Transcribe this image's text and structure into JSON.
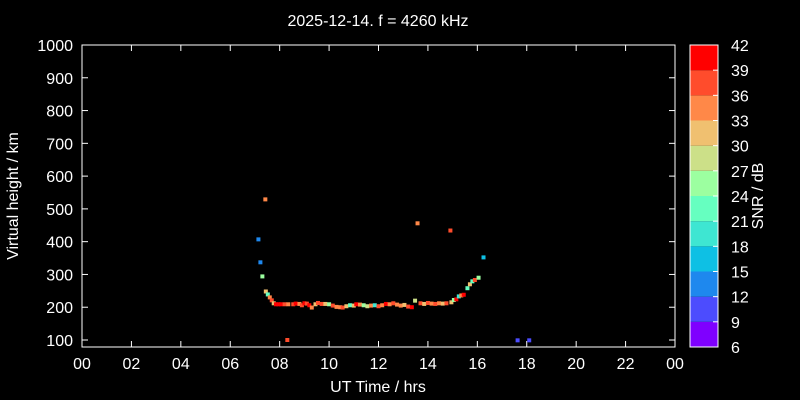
{
  "chart_data": {
    "type": "scatter",
    "title": "2025-12-14. f = 4260 kHz",
    "xlabel": "UT Time / hrs",
    "ylabel": "Virtual height / km",
    "xlim": [
      0,
      24
    ],
    "ylim": [
      80,
      1000
    ],
    "xticks": [
      "00",
      "02",
      "04",
      "06",
      "08",
      "10",
      "12",
      "14",
      "16",
      "18",
      "20",
      "22",
      "00"
    ],
    "xtick_values": [
      0,
      2,
      4,
      6,
      8,
      10,
      12,
      14,
      16,
      18,
      20,
      22,
      24
    ],
    "yticks": [
      100,
      200,
      300,
      400,
      500,
      600,
      700,
      800,
      900,
      1000
    ],
    "colorbar": {
      "label": "SNR / dB",
      "ticks": [
        6,
        9,
        12,
        15,
        18,
        21,
        24,
        27,
        30,
        33,
        36,
        39,
        42
      ],
      "colors": [
        "#7f00ff",
        "#4c4cfe",
        "#1e88ee",
        "#0ec0e4",
        "#3ee6d2",
        "#66ffc0",
        "#9cffa0",
        "#cce088",
        "#f0c070",
        "#ff8848",
        "#ff4c2c",
        "#ff0000"
      ]
    },
    "points": [
      [
        7.14,
        407,
        13
      ],
      [
        7.22,
        337,
        13
      ],
      [
        7.3,
        294,
        25
      ],
      [
        7.42,
        529,
        34
      ],
      [
        8.31,
        100,
        37
      ],
      [
        7.44,
        248,
        31
      ],
      [
        7.52,
        239,
        22
      ],
      [
        7.6,
        230,
        34
      ],
      [
        7.68,
        221,
        37
      ],
      [
        7.76,
        212,
        31
      ],
      [
        7.85,
        209,
        40
      ],
      [
        7.95,
        209,
        40
      ],
      [
        8.05,
        209,
        40
      ],
      [
        8.2,
        209,
        37
      ],
      [
        8.35,
        209,
        34
      ],
      [
        8.55,
        209,
        37
      ],
      [
        8.65,
        211,
        40
      ],
      [
        8.8,
        210,
        33
      ],
      [
        8.9,
        206,
        37
      ],
      [
        9.0,
        212,
        40
      ],
      [
        9.1,
        211,
        37
      ],
      [
        9.2,
        206,
        40
      ],
      [
        9.3,
        199,
        33
      ],
      [
        9.45,
        209,
        30
      ],
      [
        9.55,
        213,
        37
      ],
      [
        9.7,
        210,
        37
      ],
      [
        9.85,
        210,
        31
      ],
      [
        10.0,
        209,
        25
      ],
      [
        10.15,
        205,
        36
      ],
      [
        10.3,
        201,
        33
      ],
      [
        10.45,
        200,
        35
      ],
      [
        10.55,
        199,
        37
      ],
      [
        10.7,
        203,
        31
      ],
      [
        10.85,
        206,
        22
      ],
      [
        11.0,
        205,
        30
      ],
      [
        11.1,
        209,
        40
      ],
      [
        11.25,
        208,
        33
      ],
      [
        11.4,
        206,
        24
      ],
      [
        11.55,
        203,
        27
      ],
      [
        11.7,
        205,
        34
      ],
      [
        11.85,
        206,
        19
      ],
      [
        12.0,
        203,
        38
      ],
      [
        12.15,
        206,
        34
      ],
      [
        12.3,
        210,
        40
      ],
      [
        12.45,
        209,
        34
      ],
      [
        12.6,
        212,
        37
      ],
      [
        12.75,
        208,
        35
      ],
      [
        12.9,
        205,
        33
      ],
      [
        13.05,
        207,
        30
      ],
      [
        13.2,
        202,
        37
      ],
      [
        13.35,
        200,
        40
      ],
      [
        13.48,
        220,
        27
      ],
      [
        13.58,
        456,
        34
      ],
      [
        13.7,
        212,
        37
      ],
      [
        13.85,
        210,
        31
      ],
      [
        14.0,
        213,
        37
      ],
      [
        14.15,
        211,
        34
      ],
      [
        14.3,
        210,
        37
      ],
      [
        14.45,
        212,
        34
      ],
      [
        14.6,
        211,
        31
      ],
      [
        14.75,
        212,
        37
      ],
      [
        14.91,
        434,
        37
      ],
      [
        14.95,
        215,
        31
      ],
      [
        15.05,
        222,
        25
      ],
      [
        15.15,
        224,
        39
      ],
      [
        15.25,
        233,
        19
      ],
      [
        15.35,
        236,
        34
      ],
      [
        15.45,
        238,
        39
      ],
      [
        15.6,
        258,
        22
      ],
      [
        15.7,
        270,
        31
      ],
      [
        15.8,
        279,
        22
      ],
      [
        15.9,
        283,
        38
      ],
      [
        16.05,
        290,
        25
      ],
      [
        16.25,
        352,
        16
      ],
      [
        17.63,
        99,
        10
      ],
      [
        18.1,
        99,
        11
      ]
    ]
  }
}
